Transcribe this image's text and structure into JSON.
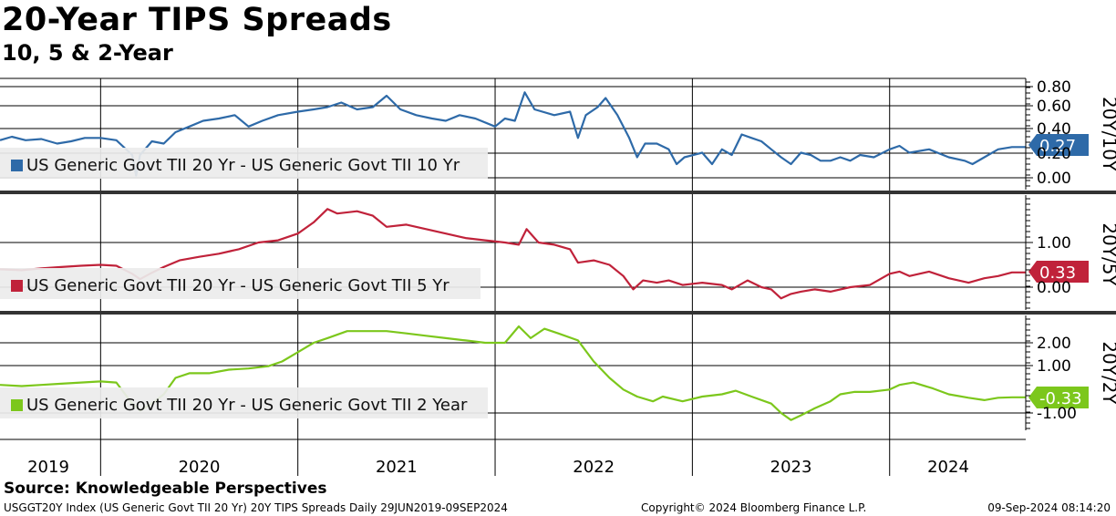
{
  "header": {
    "title": "20-Year TIPS Spreads",
    "subtitle": "10, 5 & 2-Year"
  },
  "footer": {
    "source": "Source: Knowledgeable Perspectives",
    "left": "USGGT20Y Index (US Generic Govt TII 20 Yr) 20Y TIPS Spreads  Daily 29JUN2019-09SEP2024",
    "center": "Copyright© 2024 Bloomberg Finance L.P.",
    "right": "09-Sep-2024 08:14:20"
  },
  "chart_data": [
    {
      "type": "line",
      "panel_label": "20Y/10Y",
      "series": [
        {
          "name": "US Generic Govt TII 20 Yr - US Generic Govt TII 10 Yr",
          "color": "#2e6aa8",
          "last_value": "0.27",
          "points": [
            [
              2019.49,
              0.33
            ],
            [
              2019.55,
              0.36
            ],
            [
              2019.62,
              0.33
            ],
            [
              2019.7,
              0.34
            ],
            [
              2019.78,
              0.3
            ],
            [
              2019.85,
              0.32
            ],
            [
              2019.92,
              0.35
            ],
            [
              2020.0,
              0.35
            ],
            [
              2020.08,
              0.33
            ],
            [
              2020.16,
              0.2
            ],
            [
              2020.18,
              0.02
            ],
            [
              2020.2,
              0.2
            ],
            [
              2020.26,
              0.32
            ],
            [
              2020.32,
              0.3
            ],
            [
              2020.38,
              0.4
            ],
            [
              2020.45,
              0.45
            ],
            [
              2020.52,
              0.5
            ],
            [
              2020.6,
              0.52
            ],
            [
              2020.68,
              0.55
            ],
            [
              2020.75,
              0.45
            ],
            [
              2020.82,
              0.5
            ],
            [
              2020.9,
              0.55
            ],
            [
              2021.0,
              0.58
            ],
            [
              2021.08,
              0.6
            ],
            [
              2021.15,
              0.62
            ],
            [
              2021.22,
              0.66
            ],
            [
              2021.3,
              0.6
            ],
            [
              2021.38,
              0.62
            ],
            [
              2021.45,
              0.72
            ],
            [
              2021.52,
              0.6
            ],
            [
              2021.6,
              0.55
            ],
            [
              2021.68,
              0.52
            ],
            [
              2021.75,
              0.5
            ],
            [
              2021.82,
              0.55
            ],
            [
              2021.9,
              0.52
            ],
            [
              2022.0,
              0.45
            ],
            [
              2022.05,
              0.52
            ],
            [
              2022.1,
              0.5
            ],
            [
              2022.15,
              0.75
            ],
            [
              2022.2,
              0.6
            ],
            [
              2022.3,
              0.55
            ],
            [
              2022.38,
              0.58
            ],
            [
              2022.42,
              0.35
            ],
            [
              2022.46,
              0.55
            ],
            [
              2022.52,
              0.62
            ],
            [
              2022.56,
              0.7
            ],
            [
              2022.62,
              0.55
            ],
            [
              2022.68,
              0.35
            ],
            [
              2022.72,
              0.18
            ],
            [
              2022.76,
              0.3
            ],
            [
              2022.82,
              0.3
            ],
            [
              2022.88,
              0.25
            ],
            [
              2022.92,
              0.12
            ],
            [
              2022.96,
              0.18
            ],
            [
              2023.05,
              0.22
            ],
            [
              2023.1,
              0.12
            ],
            [
              2023.15,
              0.25
            ],
            [
              2023.2,
              0.2
            ],
            [
              2023.25,
              0.38
            ],
            [
              2023.3,
              0.35
            ],
            [
              2023.35,
              0.32
            ],
            [
              2023.4,
              0.25
            ],
            [
              2023.45,
              0.18
            ],
            [
              2023.5,
              0.12
            ],
            [
              2023.55,
              0.22
            ],
            [
              2023.6,
              0.2
            ],
            [
              2023.65,
              0.15
            ],
            [
              2023.7,
              0.15
            ],
            [
              2023.75,
              0.18
            ],
            [
              2023.8,
              0.15
            ],
            [
              2023.85,
              0.2
            ],
            [
              2023.92,
              0.18
            ],
            [
              2024.0,
              0.25
            ],
            [
              2024.05,
              0.28
            ],
            [
              2024.1,
              0.22
            ],
            [
              2024.2,
              0.25
            ],
            [
              2024.3,
              0.18
            ],
            [
              2024.38,
              0.15
            ],
            [
              2024.42,
              0.12
            ],
            [
              2024.48,
              0.18
            ],
            [
              2024.55,
              0.25
            ],
            [
              2024.62,
              0.27
            ],
            [
              2024.69,
              0.27
            ]
          ]
        }
      ],
      "y_ticks": [
        "0.80",
        "0.60",
        "0.40",
        "0.20",
        "0.00"
      ],
      "ylim": [
        -0.08,
        0.85
      ]
    },
    {
      "type": "line",
      "panel_label": "20Y/5Y",
      "series": [
        {
          "name": "US Generic Govt TII 20 Yr - US Generic Govt TII 5 Yr",
          "color": "#c0223a",
          "last_value": "0.33",
          "points": [
            [
              2019.49,
              0.4
            ],
            [
              2019.6,
              0.38
            ],
            [
              2019.7,
              0.42
            ],
            [
              2019.8,
              0.45
            ],
            [
              2019.9,
              0.48
            ],
            [
              2020.0,
              0.5
            ],
            [
              2020.08,
              0.48
            ],
            [
              2020.16,
              0.3
            ],
            [
              2020.2,
              0.18
            ],
            [
              2020.25,
              0.3
            ],
            [
              2020.32,
              0.45
            ],
            [
              2020.4,
              0.6
            ],
            [
              2020.5,
              0.68
            ],
            [
              2020.6,
              0.75
            ],
            [
              2020.7,
              0.85
            ],
            [
              2020.8,
              1.0
            ],
            [
              2020.9,
              1.05
            ],
            [
              2021.0,
              1.2
            ],
            [
              2021.08,
              1.45
            ],
            [
              2021.15,
              1.75
            ],
            [
              2021.2,
              1.65
            ],
            [
              2021.3,
              1.7
            ],
            [
              2021.38,
              1.6
            ],
            [
              2021.45,
              1.35
            ],
            [
              2021.55,
              1.4
            ],
            [
              2021.65,
              1.3
            ],
            [
              2021.75,
              1.2
            ],
            [
              2021.85,
              1.1
            ],
            [
              2021.95,
              1.05
            ],
            [
              2022.05,
              1.0
            ],
            [
              2022.12,
              0.95
            ],
            [
              2022.16,
              1.3
            ],
            [
              2022.22,
              1.0
            ],
            [
              2022.3,
              0.95
            ],
            [
              2022.38,
              0.85
            ],
            [
              2022.42,
              0.55
            ],
            [
              2022.5,
              0.6
            ],
            [
              2022.58,
              0.5
            ],
            [
              2022.65,
              0.25
            ],
            [
              2022.7,
              -0.05
            ],
            [
              2022.75,
              0.15
            ],
            [
              2022.82,
              0.1
            ],
            [
              2022.88,
              0.15
            ],
            [
              2022.95,
              0.05
            ],
            [
              2023.05,
              0.1
            ],
            [
              2023.15,
              0.05
            ],
            [
              2023.2,
              -0.05
            ],
            [
              2023.28,
              0.15
            ],
            [
              2023.35,
              0.0
            ],
            [
              2023.4,
              -0.05
            ],
            [
              2023.45,
              -0.25
            ],
            [
              2023.5,
              -0.15
            ],
            [
              2023.55,
              -0.1
            ],
            [
              2023.62,
              -0.05
            ],
            [
              2023.7,
              -0.1
            ],
            [
              2023.8,
              0.0
            ],
            [
              2023.9,
              0.05
            ],
            [
              2024.0,
              0.3
            ],
            [
              2024.05,
              0.35
            ],
            [
              2024.1,
              0.25
            ],
            [
              2024.2,
              0.35
            ],
            [
              2024.3,
              0.2
            ],
            [
              2024.4,
              0.1
            ],
            [
              2024.48,
              0.2
            ],
            [
              2024.55,
              0.25
            ],
            [
              2024.62,
              0.33
            ],
            [
              2024.69,
              0.33
            ]
          ]
        }
      ],
      "y_ticks": [
        "1.00",
        "0.00"
      ],
      "ylim": [
        -0.35,
        1.9
      ]
    },
    {
      "type": "line",
      "panel_label": "20Y/2Y",
      "series": [
        {
          "name": "US Generic Govt TII 20 Yr - US Generic Govt TII 2 Year",
          "color": "#7cc71c",
          "last_value": "-0.33",
          "points": [
            [
              2019.49,
              0.2
            ],
            [
              2019.6,
              0.15
            ],
            [
              2019.7,
              0.2
            ],
            [
              2019.8,
              0.25
            ],
            [
              2019.9,
              0.3
            ],
            [
              2020.0,
              0.35
            ],
            [
              2020.08,
              0.3
            ],
            [
              2020.16,
              -0.6
            ],
            [
              2020.2,
              -0.9
            ],
            [
              2020.26,
              -0.6
            ],
            [
              2020.32,
              -0.2
            ],
            [
              2020.38,
              0.5
            ],
            [
              2020.45,
              0.7
            ],
            [
              2020.55,
              0.7
            ],
            [
              2020.65,
              0.85
            ],
            [
              2020.75,
              0.9
            ],
            [
              2020.85,
              1.0
            ],
            [
              2020.92,
              1.2
            ],
            [
              2021.0,
              1.6
            ],
            [
              2021.08,
              2.0
            ],
            [
              2021.15,
              2.2
            ],
            [
              2021.25,
              2.5
            ],
            [
              2021.35,
              2.5
            ],
            [
              2021.45,
              2.5
            ],
            [
              2021.55,
              2.4
            ],
            [
              2021.65,
              2.3
            ],
            [
              2021.75,
              2.2
            ],
            [
              2021.85,
              2.1
            ],
            [
              2021.95,
              2.0
            ],
            [
              2022.05,
              2.0
            ],
            [
              2022.12,
              2.7
            ],
            [
              2022.18,
              2.2
            ],
            [
              2022.25,
              2.6
            ],
            [
              2022.32,
              2.4
            ],
            [
              2022.42,
              2.1
            ],
            [
              2022.5,
              1.2
            ],
            [
              2022.58,
              0.5
            ],
            [
              2022.65,
              0.0
            ],
            [
              2022.72,
              -0.3
            ],
            [
              2022.8,
              -0.5
            ],
            [
              2022.85,
              -0.3
            ],
            [
              2022.95,
              -0.5
            ],
            [
              2023.05,
              -0.3
            ],
            [
              2023.15,
              -0.2
            ],
            [
              2023.22,
              -0.05
            ],
            [
              2023.3,
              -0.3
            ],
            [
              2023.4,
              -0.6
            ],
            [
              2023.45,
              -1.0
            ],
            [
              2023.5,
              -1.3
            ],
            [
              2023.55,
              -1.1
            ],
            [
              2023.62,
              -0.8
            ],
            [
              2023.7,
              -0.5
            ],
            [
              2023.75,
              -0.2
            ],
            [
              2023.82,
              -0.1
            ],
            [
              2023.9,
              -0.1
            ],
            [
              2024.0,
              0.0
            ],
            [
              2024.05,
              0.2
            ],
            [
              2024.12,
              0.3
            ],
            [
              2024.22,
              0.05
            ],
            [
              2024.3,
              -0.2
            ],
            [
              2024.4,
              -0.35
            ],
            [
              2024.48,
              -0.45
            ],
            [
              2024.55,
              -0.35
            ],
            [
              2024.62,
              -0.33
            ],
            [
              2024.69,
              -0.33
            ]
          ]
        }
      ],
      "y_ticks": [
        "2.00",
        "1.00",
        "-1.00"
      ],
      "y_tick_values": [
        2,
        1,
        -1
      ],
      "ylim": [
        -1.5,
        3.1
      ]
    }
  ],
  "x_axis": {
    "years": [
      "2019",
      "2020",
      "2021",
      "2022",
      "2023",
      "2024"
    ],
    "range": [
      2019.49,
      2024.69
    ]
  }
}
